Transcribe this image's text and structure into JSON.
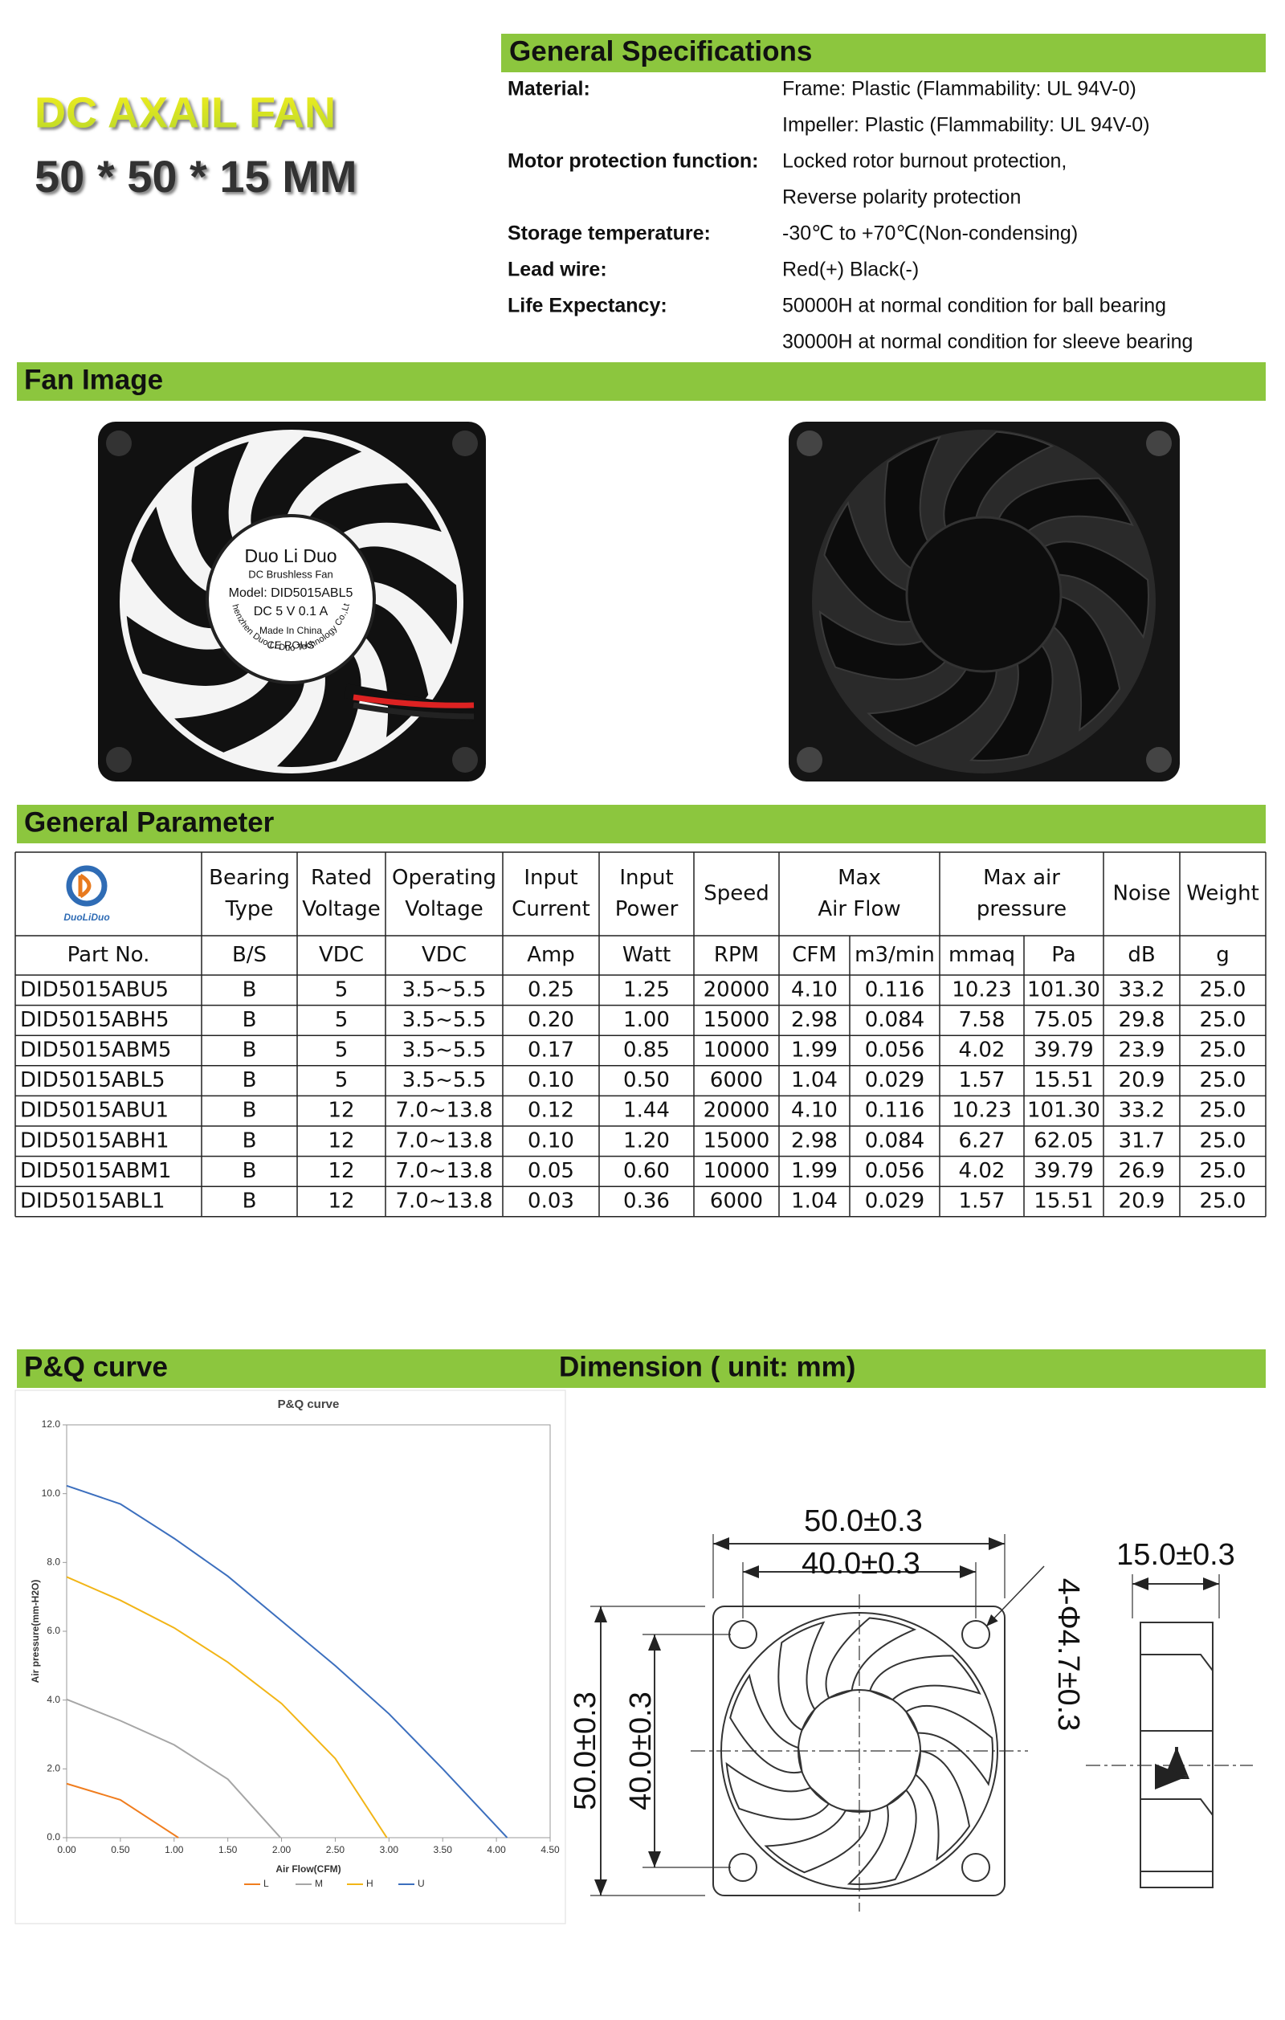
{
  "header": {
    "title": "DC AXAIL FAN",
    "size": "50 * 50 * 15 MM"
  },
  "specs": {
    "title": "General Specifications",
    "rows": [
      {
        "label": "Material:",
        "values": [
          "Frame: Plastic (Flammability: UL 94V-0)",
          "Impeller: Plastic (Flammability: UL 94V-0)"
        ]
      },
      {
        "label": "Motor protection function:",
        "values": [
          "Locked rotor burnout protection,",
          "Reverse polarity protection"
        ]
      },
      {
        "label": "Storage temperature:",
        "values": [
          "-30℃ to +70℃(Non-condensing)"
        ]
      },
      {
        "label": "Lead wire:",
        "values": [
          "Red(+) Black(-)"
        ]
      },
      {
        "label": "Life Expectancy:",
        "values": [
          "50000H at normal condition for ball bearing",
          "30000H at normal condition for sleeve bearing"
        ]
      }
    ]
  },
  "fan_image": {
    "title": "Fan Image",
    "label": {
      "brand": "Duo Li Duo",
      "kind": "DC Brushless Fan",
      "model": "Model: DID5015ABL5",
      "rating": "DC  5  V  0.1  A",
      "origin": "Made In China",
      "marks": "CE  ROHS",
      "maker": "Shenzhen Duo Li Duo Technology Co.,Ltd"
    }
  },
  "parameters": {
    "title": "General Parameter",
    "logo": "DuoLiDuo",
    "headers": [
      [
        "Bearing",
        "Type"
      ],
      [
        "Rated",
        "Voltage"
      ],
      [
        "Operating",
        "Voltage"
      ],
      [
        "Input",
        "Current"
      ],
      [
        "Input",
        "Power"
      ],
      [
        "Speed"
      ],
      [
        "Max",
        "Air Flow"
      ],
      [
        "Max air",
        "pressure"
      ],
      [
        "Noise"
      ],
      [
        "Weight"
      ]
    ],
    "units": [
      "Part No.",
      "B/S",
      "VDC",
      "VDC",
      "Amp",
      "Watt",
      "RPM",
      "CFM",
      "m3/min",
      "mmaq",
      "Pa",
      "dB",
      "g"
    ],
    "rows": [
      [
        "DID5015ABU5",
        "B",
        "5",
        "3.5~5.5",
        "0.25",
        "1.25",
        "20000",
        "4.10",
        "0.116",
        "10.23",
        "101.30",
        "33.2",
        "25.0"
      ],
      [
        "DID5015ABH5",
        "B",
        "5",
        "3.5~5.5",
        "0.20",
        "1.00",
        "15000",
        "2.98",
        "0.084",
        "7.58",
        "75.05",
        "29.8",
        "25.0"
      ],
      [
        "DID5015ABM5",
        "B",
        "5",
        "3.5~5.5",
        "0.17",
        "0.85",
        "10000",
        "1.99",
        "0.056",
        "4.02",
        "39.79",
        "23.9",
        "25.0"
      ],
      [
        "DID5015ABL5",
        "B",
        "5",
        "3.5~5.5",
        "0.10",
        "0.50",
        "6000",
        "1.04",
        "0.029",
        "1.57",
        "15.51",
        "20.9",
        "25.0"
      ],
      [
        "DID5015ABU1",
        "B",
        "12",
        "7.0~13.8",
        "0.12",
        "1.44",
        "20000",
        "4.10",
        "0.116",
        "10.23",
        "101.30",
        "33.2",
        "25.0"
      ],
      [
        "DID5015ABH1",
        "B",
        "12",
        "7.0~13.8",
        "0.10",
        "1.20",
        "15000",
        "2.98",
        "0.084",
        "6.27",
        "62.05",
        "31.7",
        "25.0"
      ],
      [
        "DID5015ABM1",
        "B",
        "12",
        "7.0~13.8",
        "0.05",
        "0.60",
        "10000",
        "1.99",
        "0.056",
        "4.02",
        "39.79",
        "26.9",
        "25.0"
      ],
      [
        "DID5015ABL1",
        "B",
        "12",
        "7.0~13.8",
        "0.03",
        "0.36",
        "6000",
        "1.04",
        "0.029",
        "1.57",
        "15.51",
        "20.9",
        "25.0"
      ]
    ]
  },
  "pq_curve": {
    "title": "P&Q curve"
  },
  "chart_data": {
    "type": "line",
    "title": "P&Q curve",
    "x_label": "Air Flow(CFM)",
    "y_label": "Air pressure(mm-H2O)",
    "xlim": [
      0,
      4.5
    ],
    "ylim": [
      0,
      12
    ],
    "xticks": [
      {
        "value": 0,
        "label": "0.00"
      },
      {
        "value": 0.5,
        "label": "0.50"
      },
      {
        "value": 1,
        "label": "1.00"
      },
      {
        "value": 1.5,
        "label": "1.50"
      },
      {
        "value": 2,
        "label": "2.00"
      },
      {
        "value": 2.5,
        "label": "2.50"
      },
      {
        "value": 3,
        "label": "3.00"
      },
      {
        "value": 3.5,
        "label": "3.50"
      },
      {
        "value": 4,
        "label": "4.00"
      },
      {
        "value": 4.5,
        "label": "4.50"
      }
    ],
    "yticks": [
      {
        "value": 0,
        "label": "0.0"
      },
      {
        "value": 2,
        "label": "2.0"
      },
      {
        "value": 4,
        "label": "4.0"
      },
      {
        "value": 6,
        "label": "6.0"
      },
      {
        "value": 8,
        "label": "8.0"
      },
      {
        "value": 10,
        "label": "10.0"
      },
      {
        "value": 12,
        "label": "12.0"
      }
    ],
    "series": [
      {
        "name": "L",
        "color": "#f07d1e",
        "x": [
          0,
          0.5,
          1.04
        ],
        "values": [
          1.57,
          1.1,
          0
        ]
      },
      {
        "name": "M",
        "color": "#a6a6a6",
        "x": [
          0,
          0.5,
          1.0,
          1.5,
          1.99
        ],
        "values": [
          4.02,
          3.4,
          2.7,
          1.7,
          0
        ]
      },
      {
        "name": "H",
        "color": "#f2b517",
        "x": [
          0,
          0.5,
          1.0,
          1.5,
          2.0,
          2.5,
          2.98
        ],
        "values": [
          7.58,
          6.9,
          6.1,
          5.1,
          3.9,
          2.3,
          0
        ]
      },
      {
        "name": "U",
        "color": "#3c6fbe",
        "x": [
          0,
          0.5,
          1.0,
          1.5,
          2.0,
          2.5,
          3.0,
          3.5,
          4.1
        ],
        "values": [
          10.23,
          9.7,
          8.7,
          7.6,
          6.3,
          5.0,
          3.6,
          2.0,
          0
        ]
      }
    ]
  },
  "dimension": {
    "title": "Dimension ( unit: mm)",
    "outer_width": "50.0±0.3",
    "hole_spacing_x": "40.0±0.3",
    "hole": "4-Φ4.7±0.3",
    "depth": "15.0±0.3",
    "outer_height": "50.0±0.3",
    "hole_spacing_y": "40.0±0.3"
  }
}
